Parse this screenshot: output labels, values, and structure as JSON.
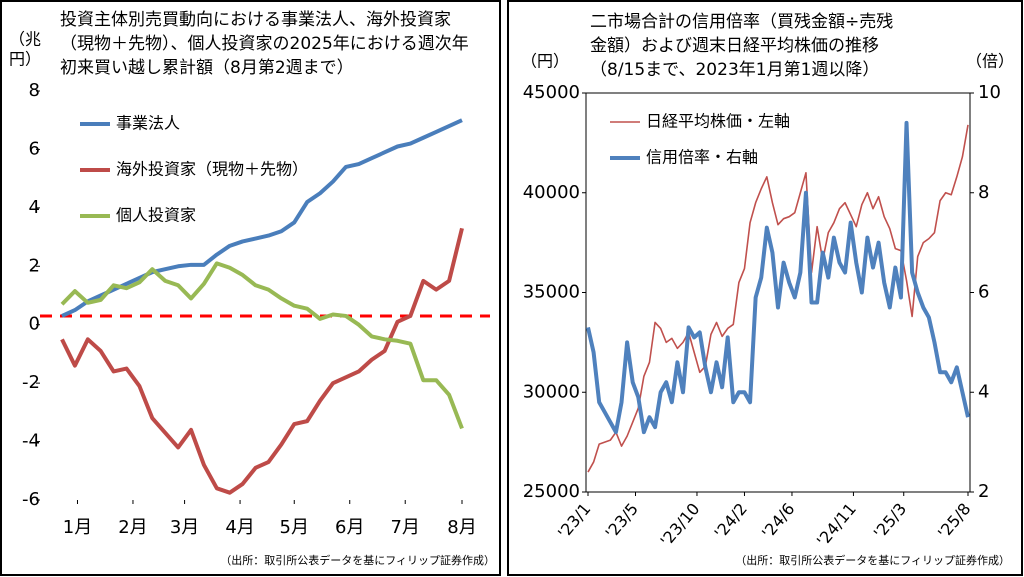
{
  "chart_data": [
    {
      "type": "line",
      "title": [
        "投資主体別売買動向における事業法人、海外投資家",
        "（現物＋先物）、個人投資家の2025年における週次年",
        "初来買い越し累計額（8月第2週まで）"
      ],
      "ylabel": [
        "（兆",
        "円）"
      ],
      "source": "（出所：取引所公表データを基にフィリップ証券作成）",
      "x": [
        1,
        2,
        3,
        4,
        5,
        6,
        7,
        8,
        9,
        10,
        11,
        12,
        13,
        14,
        15,
        16,
        17,
        18,
        19,
        20,
        21,
        22,
        23,
        24,
        25,
        26,
        27,
        28,
        29,
        30,
        31,
        32
      ],
      "xlim": [
        1,
        32
      ],
      "xticks": [
        {
          "value": 2.2,
          "label": "1月"
        },
        {
          "value": 6.5,
          "label": "2月"
        },
        {
          "value": 10.5,
          "label": "3月"
        },
        {
          "value": 14.8,
          "label": "4月"
        },
        {
          "value": 19,
          "label": "5月"
        },
        {
          "value": 23.3,
          "label": "6月"
        },
        {
          "value": 27.6,
          "label": "7月"
        },
        {
          "value": 32,
          "label": "8月"
        }
      ],
      "ylim": [
        -6,
        8
      ],
      "yticks": [
        8,
        6,
        4,
        2,
        0,
        -2,
        -4,
        -6
      ],
      "hline": 0.3,
      "hline_color": "#ff0000",
      "series": [
        {
          "name": "事業法人",
          "color": "#4a7ebb",
          "values": [
            0.3,
            0.5,
            0.8,
            1.0,
            1.2,
            1.4,
            1.6,
            1.8,
            1.9,
            2.0,
            2.05,
            2.05,
            2.4,
            2.7,
            2.85,
            2.95,
            3.05,
            3.2,
            3.5,
            4.2,
            4.5,
            4.9,
            5.4,
            5.5,
            5.7,
            5.9,
            6.1,
            6.2,
            6.4,
            6.6,
            6.8,
            7.0
          ]
        },
        {
          "name": "海外投資家（現物＋先物）",
          "color": "#be4b48",
          "values": [
            -0.5,
            -1.4,
            -0.5,
            -0.9,
            -1.6,
            -1.5,
            -2.1,
            -3.2,
            -3.7,
            -4.2,
            -3.6,
            -4.8,
            -5.6,
            -5.75,
            -5.45,
            -4.9,
            -4.7,
            -4.1,
            -3.4,
            -3.3,
            -2.6,
            -2.0,
            -1.8,
            -1.6,
            -1.2,
            -0.9,
            0.1,
            0.3,
            1.5,
            1.2,
            1.5,
            3.3
          ]
        },
        {
          "name": "個人投資家",
          "color": "#98b954",
          "values": [
            0.7,
            1.15,
            0.75,
            0.85,
            1.35,
            1.25,
            1.45,
            1.9,
            1.5,
            1.35,
            0.9,
            1.4,
            2.1,
            1.95,
            1.7,
            1.35,
            1.2,
            0.9,
            0.65,
            0.55,
            0.2,
            0.35,
            0.3,
            0.0,
            -0.4,
            -0.5,
            -0.55,
            -0.65,
            -1.9,
            -1.9,
            -2.4,
            -3.55
          ]
        }
      ]
    },
    {
      "type": "line",
      "title": [
        "二市場合計の信用倍率（買残金額÷売残",
        "金額）および週末日経平均株価の推移",
        "（8/15まで、2023年1月第1週以降）"
      ],
      "ylabel": [
        "（円）"
      ],
      "y2label": [
        "（倍）"
      ],
      "source": "（出所：取引所公表データを基にフィリップ証券作成）",
      "x": [
        0,
        2,
        4,
        6,
        8,
        10,
        12,
        14,
        16,
        18,
        20,
        22,
        24,
        26,
        28,
        30,
        32,
        34,
        36,
        38,
        40,
        42,
        44,
        46,
        48,
        50,
        52,
        54,
        56,
        58,
        60,
        62,
        64,
        66,
        68,
        70,
        72,
        74,
        76,
        78,
        80,
        82,
        84,
        86,
        88,
        90,
        92,
        94,
        96,
        98,
        100,
        102,
        104,
        106,
        108,
        110,
        112,
        114,
        116,
        118,
        120,
        122,
        124,
        126,
        128,
        130,
        132,
        134,
        136
      ],
      "xlim": [
        0,
        136
      ],
      "xticks": [
        {
          "value": 0,
          "label": "'23/1"
        },
        {
          "value": 17,
          "label": "'23/5"
        },
        {
          "value": 39,
          "label": "'23/10"
        },
        {
          "value": 56,
          "label": "'24/2"
        },
        {
          "value": 73,
          "label": "'24/6"
        },
        {
          "value": 95,
          "label": "'24/11"
        },
        {
          "value": 113,
          "label": "'25/3"
        },
        {
          "value": 136,
          "label": "'25/8"
        }
      ],
      "ylim": [
        25000,
        45000
      ],
      "yticks": [
        45000,
        40000,
        35000,
        30000,
        25000
      ],
      "y2lim": [
        2,
        10
      ],
      "y2ticks": [
        10,
        8,
        6,
        4,
        2
      ],
      "series": [
        {
          "name": "日経平均株価・左軸",
          "color": "#c0504d",
          "width": 1.6,
          "values": [
            26000,
            26500,
            27400,
            27500,
            27600,
            28000,
            27300,
            27800,
            28500,
            29200,
            30800,
            31500,
            33500,
            33200,
            32500,
            32700,
            32200,
            32500,
            33000,
            32000,
            31000,
            31300,
            32900,
            33500,
            32800,
            33200,
            33400,
            35500,
            36200,
            38500,
            39500,
            40200,
            40800,
            39500,
            38400,
            38700,
            38800,
            39000,
            40000,
            41000,
            36000,
            38300,
            36600,
            38000,
            38500,
            39200,
            39500,
            38900,
            38300,
            39400,
            40000,
            39200,
            39800,
            38800,
            38200,
            37200,
            37100,
            35600,
            33800,
            36800,
            37500,
            37700,
            38000,
            39600,
            40000,
            39900,
            40800,
            41800,
            43400
          ]
        },
        {
          "name": "信用倍率・右軸",
          "color": "#4f81bd",
          "width": 4,
          "axis": "y2",
          "values": [
            5.3,
            4.8,
            3.8,
            3.6,
            3.4,
            3.2,
            3.8,
            5.0,
            4.2,
            3.9,
            3.2,
            3.5,
            3.3,
            4.0,
            4.2,
            3.8,
            4.6,
            4.0,
            5.3,
            5.1,
            5.2,
            4.5,
            4.0,
            4.6,
            4.1,
            5.1,
            3.8,
            4.0,
            4.0,
            3.8,
            5.9,
            6.3,
            7.3,
            6.8,
            5.7,
            6.6,
            6.2,
            5.9,
            6.4,
            8.0,
            5.8,
            5.8,
            6.8,
            6.3,
            7.1,
            6.6,
            6.4,
            7.4,
            6.6,
            6.0,
            7.1,
            6.5,
            7.0,
            6.2,
            5.7,
            6.5,
            5.9,
            9.4,
            6.4,
            6.0,
            5.7,
            5.5,
            5.0,
            4.4,
            4.4,
            4.2,
            4.5,
            4.0,
            3.5
          ]
        }
      ]
    }
  ]
}
